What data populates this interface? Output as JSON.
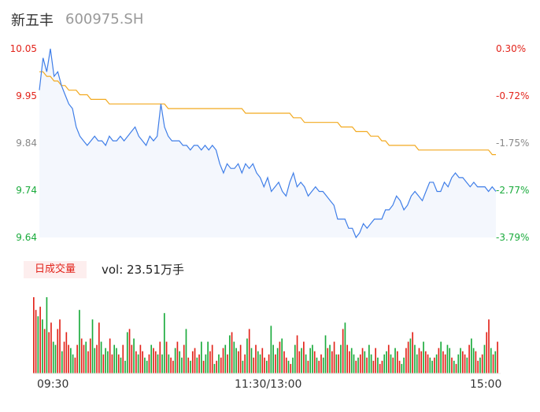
{
  "header": {
    "name": "新五丰",
    "code": "600975.SH"
  },
  "price_axis": {
    "left_labels": [
      "10.05",
      "9.95",
      "9.84",
      "9.74",
      "9.64"
    ],
    "right_labels": [
      "0.30%",
      "-0.72%",
      "-1.75%",
      "-2.77%",
      "-3.79%"
    ]
  },
  "volume_panel": {
    "tab_label": "日成交量",
    "vol_text": "vol: 23.51万手"
  },
  "time_axis": [
    "09:30",
    "11:30/13:00",
    "15:00"
  ],
  "colors": {
    "price_line": "#3f7ee8",
    "avg_line": "#f2a91f",
    "up": "#e2231a",
    "down": "#1aab3c",
    "area": "#f4f7fd"
  },
  "chart_data": [
    {
      "type": "line",
      "ylim": [
        9.64,
        10.05
      ],
      "y_ticks": [
        10.05,
        9.95,
        9.84,
        9.74,
        9.64
      ],
      "x_ticks": [
        "09:30",
        "11:30/13:00",
        "15:00"
      ],
      "series": [
        {
          "values": [
            9.96,
            10.03,
            10.0,
            10.05,
            9.99,
            10.0,
            9.97,
            9.95,
            9.93,
            9.92,
            9.88,
            9.86,
            9.85,
            9.84,
            9.85,
            9.86,
            9.85,
            9.85,
            9.84,
            9.86,
            9.85,
            9.85,
            9.86,
            9.85,
            9.86,
            9.87,
            9.88,
            9.86,
            9.85,
            9.84,
            9.86,
            9.85,
            9.86,
            9.93,
            9.88,
            9.86,
            9.85,
            9.85,
            9.85,
            9.84,
            9.84,
            9.83,
            9.84,
            9.84,
            9.83,
            9.84,
            9.83,
            9.84,
            9.83,
            9.8,
            9.78,
            9.8,
            9.79,
            9.79,
            9.8,
            9.78,
            9.8,
            9.79,
            9.8,
            9.78,
            9.77,
            9.75,
            9.77,
            9.74,
            9.75,
            9.76,
            9.74,
            9.73,
            9.76,
            9.78,
            9.75,
            9.76,
            9.75,
            9.73,
            9.74,
            9.75,
            9.74,
            9.74,
            9.73,
            9.72,
            9.71,
            9.68,
            9.68,
            9.68,
            9.66,
            9.66,
            9.64,
            9.65,
            9.67,
            9.66,
            9.67,
            9.68,
            9.68,
            9.68,
            9.7,
            9.7,
            9.71,
            9.73,
            9.72,
            9.7,
            9.71,
            9.73,
            9.74,
            9.73,
            9.72,
            9.74,
            9.76,
            9.76,
            9.74,
            9.74,
            9.76,
            9.75,
            9.77,
            9.78,
            9.77,
            9.77,
            9.76,
            9.75,
            9.76,
            9.75,
            9.75,
            9.75,
            9.74,
            9.75,
            9.74
          ]
        },
        {
          "values": [
            10.0,
            10.0,
            9.99,
            9.99,
            9.98,
            9.98,
            9.97,
            9.97,
            9.96,
            9.96,
            9.96,
            9.95,
            9.95,
            9.95,
            9.94,
            9.94,
            9.94,
            9.94,
            9.94,
            9.93,
            9.93,
            9.93,
            9.93,
            9.93,
            9.93,
            9.93,
            9.93,
            9.93,
            9.93,
            9.93,
            9.93,
            9.93,
            9.93,
            9.93,
            9.93,
            9.92,
            9.92,
            9.92,
            9.92,
            9.92,
            9.92,
            9.92,
            9.92,
            9.92,
            9.92,
            9.92,
            9.92,
            9.92,
            9.92,
            9.92,
            9.92,
            9.92,
            9.92,
            9.92,
            9.92,
            9.92,
            9.91,
            9.91,
            9.91,
            9.91,
            9.91,
            9.91,
            9.91,
            9.91,
            9.91,
            9.91,
            9.91,
            9.91,
            9.91,
            9.9,
            9.9,
            9.9,
            9.89,
            9.89,
            9.89,
            9.89,
            9.89,
            9.89,
            9.89,
            9.89,
            9.89,
            9.89,
            9.88,
            9.88,
            9.88,
            9.88,
            9.87,
            9.87,
            9.87,
            9.87,
            9.86,
            9.86,
            9.86,
            9.85,
            9.85,
            9.84,
            9.84,
            9.84,
            9.84,
            9.84,
            9.84,
            9.84,
            9.84,
            9.83,
            9.83,
            9.83,
            9.83,
            9.83,
            9.83,
            9.83,
            9.83,
            9.83,
            9.83,
            9.83,
            9.83,
            9.83,
            9.83,
            9.83,
            9.83,
            9.83,
            9.83,
            9.83,
            9.83,
            9.82,
            9.82
          ]
        }
      ]
    },
    {
      "type": "bar",
      "volumes": [
        24,
        20,
        18,
        21,
        17,
        14,
        24,
        13,
        16,
        10,
        9,
        14,
        17,
        7,
        10,
        13,
        9,
        8,
        6,
        5,
        9,
        20,
        11,
        9,
        10,
        7,
        11,
        17,
        8,
        9,
        16,
        10,
        6,
        8,
        7,
        11,
        6,
        9,
        8,
        6,
        5,
        9,
        4,
        13,
        14,
        9,
        11,
        7,
        6,
        9,
        7,
        5,
        4,
        6,
        9,
        8,
        7,
        6,
        10,
        6,
        19,
        10,
        6,
        5,
        4,
        8,
        10,
        7,
        5,
        9,
        14,
        5,
        4,
        7,
        8,
        5,
        6,
        10,
        4,
        6,
        10,
        7,
        9,
        3,
        4,
        6,
        5,
        8,
        9,
        6,
        12,
        13,
        10,
        8,
        7,
        9,
        4,
        6,
        11,
        14,
        8,
        5,
        9,
        7,
        6,
        8,
        5,
        4,
        6,
        15,
        9,
        6,
        8,
        10,
        11,
        7,
        5,
        4,
        3,
        5,
        9,
        12,
        7,
        8,
        10,
        6,
        4,
        8,
        9,
        7,
        5,
        4,
        6,
        5,
        12,
        8,
        9,
        7,
        10,
        6,
        6,
        9,
        14,
        16,
        9,
        7,
        8,
        6,
        4,
        5,
        6,
        8,
        7,
        5,
        9,
        6,
        4,
        8,
        5,
        3,
        4,
        6,
        7,
        9,
        6,
        5,
        8,
        7,
        4,
        3,
        5,
        8,
        10,
        11,
        13,
        9,
        6,
        8,
        7,
        10,
        7,
        6,
        5,
        4,
        5,
        6,
        8,
        10,
        7,
        6,
        9,
        8,
        5,
        4,
        3,
        6,
        8,
        7,
        6,
        5,
        9,
        11,
        8,
        7,
        4,
        5,
        6,
        9,
        13,
        17,
        8,
        6,
        7,
        10
      ],
      "volume_up": [
        true,
        true,
        false,
        true,
        false,
        true,
        false,
        true,
        true,
        false,
        false,
        true,
        true,
        false,
        true,
        true,
        true,
        false,
        false,
        true,
        true,
        false,
        true,
        true,
        false,
        true,
        true,
        false,
        false,
        true,
        true,
        false,
        true,
        false,
        false,
        true,
        true,
        false,
        false,
        true,
        false,
        true,
        false,
        false,
        true,
        true,
        false,
        true,
        false,
        true,
        true,
        false,
        false,
        true,
        false,
        true,
        true,
        false,
        true,
        false,
        false,
        true,
        false,
        true,
        true,
        false,
        true,
        false,
        false,
        true,
        false,
        true,
        false,
        true,
        true,
        false,
        true,
        false,
        true,
        false,
        false,
        true,
        true,
        false,
        true,
        false,
        true,
        true,
        false,
        true,
        false,
        true,
        false,
        false,
        true,
        true,
        false,
        true,
        false,
        true,
        false,
        true,
        true,
        false,
        false,
        true,
        true,
        false,
        true,
        false,
        false,
        true,
        false,
        true,
        false,
        true,
        true,
        false,
        true,
        false,
        false,
        true,
        true,
        false,
        true,
        false,
        true,
        false,
        false,
        true,
        false,
        true,
        true,
        false,
        false,
        true,
        false,
        true,
        true,
        false,
        true,
        false,
        true,
        false,
        true,
        true,
        false,
        false,
        true,
        false,
        true,
        true,
        false,
        true,
        false,
        false,
        true,
        true,
        false,
        true,
        true,
        false,
        false,
        true,
        false,
        true,
        false,
        true,
        true,
        false,
        false,
        true,
        true,
        false,
        true,
        false,
        false,
        true,
        true,
        false,
        true,
        true,
        false,
        false,
        true,
        false,
        true,
        false,
        true,
        true,
        false,
        false,
        true,
        false,
        true,
        false,
        false,
        true,
        true,
        false,
        true,
        false,
        false,
        true,
        true,
        false,
        true,
        false,
        true,
        true,
        false,
        true,
        false,
        true
      ]
    }
  ]
}
